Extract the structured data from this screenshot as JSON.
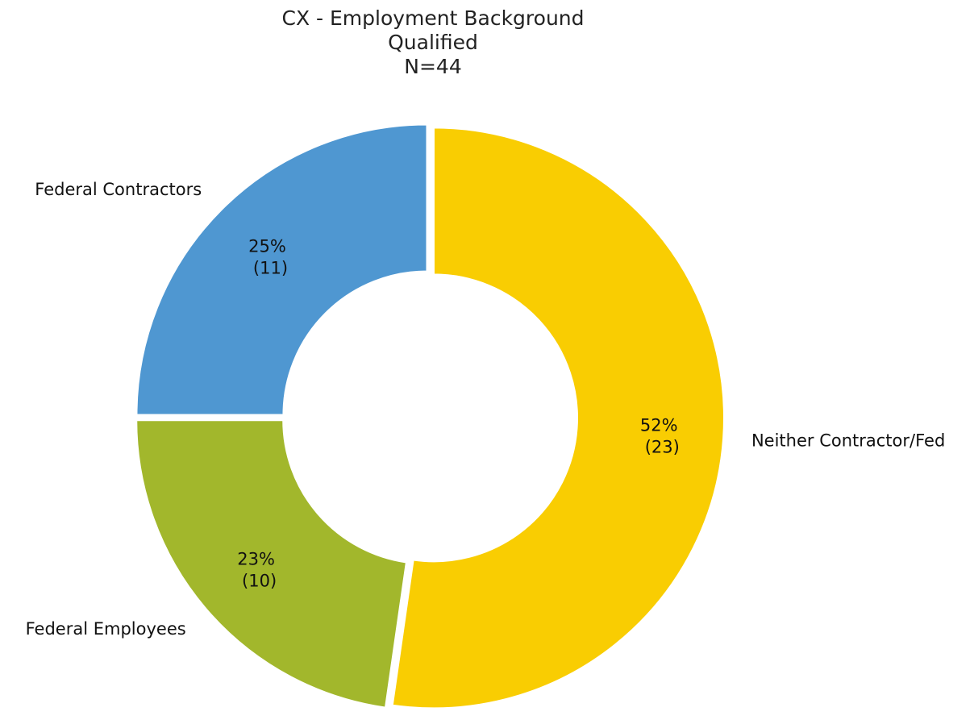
{
  "chart": {
    "title": "CX - Employment Background",
    "subtitle": "Qualified",
    "n_label": "N=44"
  },
  "chart_data": {
    "type": "pie",
    "donut": true,
    "title": "CX - Employment Background",
    "subtitle": "Qualified",
    "n_label": "N=44",
    "legend": "none",
    "slices": [
      {
        "label": "Neither Contractor/Fed",
        "value": 23,
        "percent_label": "52%",
        "count_label": "(23)",
        "color": "#F9CD02"
      },
      {
        "label": "Federal Employees",
        "value": 10,
        "percent_label": "23%",
        "count_label": "(10)",
        "color": "#A2B72C"
      },
      {
        "label": "Federal Contractors",
        "value": 11,
        "percent_label": "25%",
        "count_label": "(11)",
        "color": "#4F97D1"
      }
    ]
  }
}
